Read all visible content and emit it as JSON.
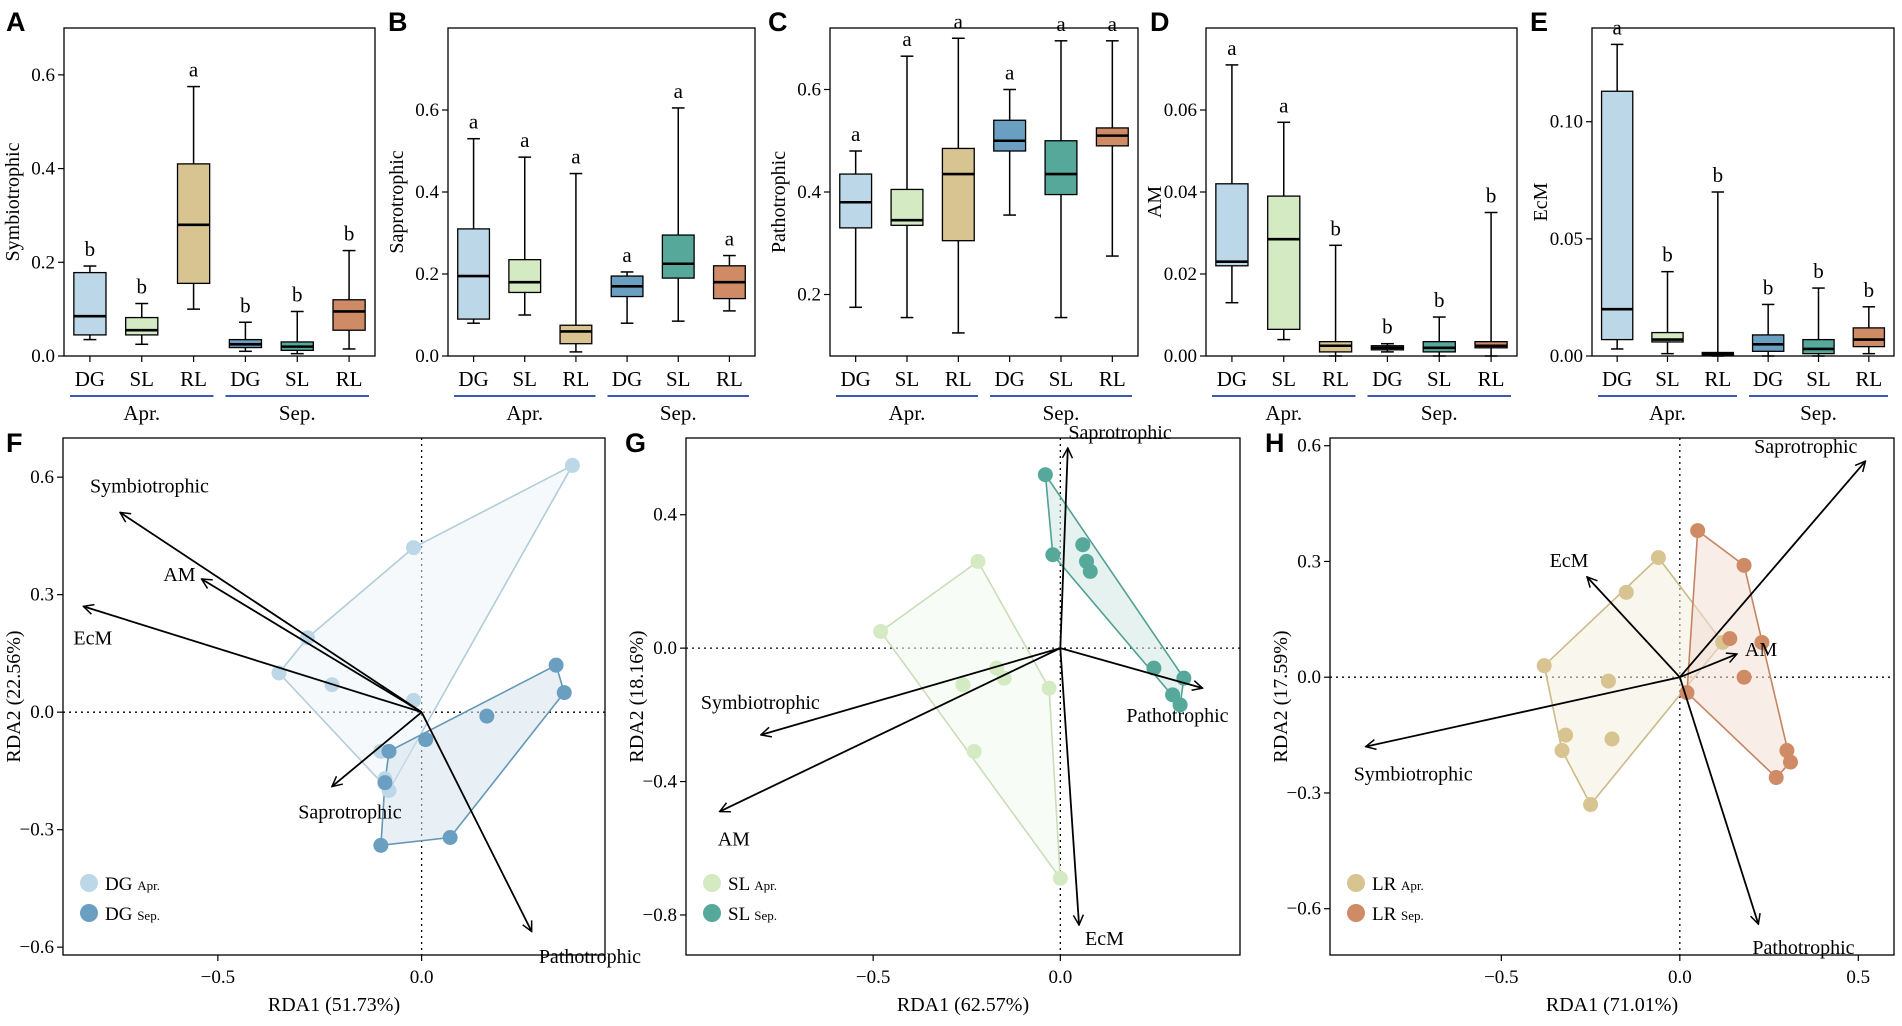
{
  "figure": {
    "panel_labels": [
      "A",
      "B",
      "C",
      "D",
      "E",
      "F",
      "G",
      "H"
    ]
  },
  "colors": {
    "DG_Apr": "#bcd7e7",
    "SL_Apr": "#d4eac2",
    "RL_Apr": "#d7c490",
    "DG_Sep": "#6a9fc1",
    "SL_Sep": "#56a89b",
    "RL_Sep": "#cf8b66",
    "group_line": "#3a5bb0"
  },
  "chart_data": [
    {
      "type": "boxplot",
      "panel": "A",
      "ylabel": "Symbiotrophic",
      "ylim": [
        0,
        0.7
      ],
      "yticks": [
        0,
        0.2,
        0.4,
        0.6
      ],
      "ytick_labels": [
        "0.0",
        "0.2",
        "0.4",
        "0.6"
      ],
      "categories": [
        "DG",
        "SL",
        "RL",
        "DG",
        "SL",
        "RL"
      ],
      "groups": [
        "Apr.",
        "Sep."
      ],
      "color_keys": [
        "DG_Apr",
        "SL_Apr",
        "RL_Apr",
        "DG_Sep",
        "SL_Sep",
        "RL_Sep"
      ],
      "boxes": [
        {
          "min": 0.035,
          "q1": 0.045,
          "median": 0.085,
          "q3": 0.178,
          "max": 0.192
        },
        {
          "min": 0.025,
          "q1": 0.045,
          "median": 0.055,
          "q3": 0.082,
          "max": 0.112
        },
        {
          "min": 0.1,
          "q1": 0.155,
          "median": 0.28,
          "q3": 0.41,
          "max": 0.575
        },
        {
          "min": 0.01,
          "q1": 0.018,
          "median": 0.025,
          "q3": 0.035,
          "max": 0.072
        },
        {
          "min": 0.005,
          "q1": 0.012,
          "median": 0.02,
          "q3": 0.03,
          "max": 0.095
        },
        {
          "min": 0.015,
          "q1": 0.055,
          "median": 0.095,
          "q3": 0.12,
          "max": 0.225
        }
      ],
      "letters": [
        "b",
        "b",
        "a",
        "b",
        "b",
        "b"
      ]
    },
    {
      "type": "boxplot",
      "panel": "B",
      "ylabel": "Saprotrophic",
      "ylim": [
        0,
        0.8
      ],
      "yticks": [
        0,
        0.2,
        0.4,
        0.6
      ],
      "ytick_labels": [
        "0.0",
        "0.2",
        "0.4",
        "0.6"
      ],
      "categories": [
        "DG",
        "SL",
        "RL",
        "DG",
        "SL",
        "RL"
      ],
      "groups": [
        "Apr.",
        "Sep."
      ],
      "color_keys": [
        "DG_Apr",
        "SL_Apr",
        "RL_Apr",
        "DG_Sep",
        "SL_Sep",
        "RL_Sep"
      ],
      "boxes": [
        {
          "min": 0.08,
          "q1": 0.09,
          "median": 0.195,
          "q3": 0.31,
          "max": 0.53
        },
        {
          "min": 0.1,
          "q1": 0.155,
          "median": 0.18,
          "q3": 0.235,
          "max": 0.485
        },
        {
          "min": 0.01,
          "q1": 0.03,
          "median": 0.06,
          "q3": 0.075,
          "max": 0.445
        },
        {
          "min": 0.08,
          "q1": 0.145,
          "median": 0.17,
          "q3": 0.195,
          "max": 0.205
        },
        {
          "min": 0.085,
          "q1": 0.19,
          "median": 0.225,
          "q3": 0.295,
          "max": 0.605
        },
        {
          "min": 0.11,
          "q1": 0.14,
          "median": 0.18,
          "q3": 0.22,
          "max": 0.245
        }
      ],
      "letters": [
        "a",
        "a",
        "a",
        "a",
        "a",
        "a"
      ]
    },
    {
      "type": "boxplot",
      "panel": "C",
      "ylabel": "Pathotrophic",
      "ylim": [
        0.08,
        0.72
      ],
      "yticks": [
        0.2,
        0.4,
        0.6
      ],
      "ytick_labels": [
        "0.2",
        "0.4",
        "0.6"
      ],
      "categories": [
        "DG",
        "SL",
        "RL",
        "DG",
        "SL",
        "RL"
      ],
      "groups": [
        "Apr.",
        "Sep."
      ],
      "color_keys": [
        "DG_Apr",
        "SL_Apr",
        "RL_Apr",
        "DG_Sep",
        "SL_Sep",
        "RL_Sep"
      ],
      "boxes": [
        {
          "min": 0.175,
          "q1": 0.33,
          "median": 0.38,
          "q3": 0.435,
          "max": 0.48
        },
        {
          "min": 0.155,
          "q1": 0.335,
          "median": 0.345,
          "q3": 0.405,
          "max": 0.665
        },
        {
          "min": 0.125,
          "q1": 0.305,
          "median": 0.435,
          "q3": 0.485,
          "max": 0.7
        },
        {
          "min": 0.355,
          "q1": 0.48,
          "median": 0.5,
          "q3": 0.54,
          "max": 0.6
        },
        {
          "min": 0.155,
          "q1": 0.395,
          "median": 0.435,
          "q3": 0.5,
          "max": 0.695
        },
        {
          "min": 0.275,
          "q1": 0.49,
          "median": 0.51,
          "q3": 0.525,
          "max": 0.695
        }
      ],
      "letters": [
        "a",
        "a",
        "a",
        "a",
        "a",
        "a"
      ]
    },
    {
      "type": "boxplot",
      "panel": "D",
      "ylabel": "AM",
      "ylim": [
        0,
        0.08
      ],
      "yticks": [
        0,
        0.02,
        0.04,
        0.06
      ],
      "ytick_labels": [
        "0.00",
        "0.02",
        "0.04",
        "0.06"
      ],
      "categories": [
        "DG",
        "SL",
        "RL",
        "DG",
        "SL",
        "RL"
      ],
      "groups": [
        "Apr.",
        "Sep."
      ],
      "color_keys": [
        "DG_Apr",
        "SL_Apr",
        "RL_Apr",
        "DG_Sep",
        "SL_Sep",
        "RL_Sep"
      ],
      "boxes": [
        {
          "min": 0.013,
          "q1": 0.022,
          "median": 0.023,
          "q3": 0.042,
          "max": 0.071
        },
        {
          "min": 0.004,
          "q1": 0.0065,
          "median": 0.0285,
          "q3": 0.039,
          "max": 0.057
        },
        {
          "min": 0.0,
          "q1": 0.001,
          "median": 0.0025,
          "q3": 0.0035,
          "max": 0.027
        },
        {
          "min": 0.001,
          "q1": 0.0015,
          "median": 0.002,
          "q3": 0.0025,
          "max": 0.003
        },
        {
          "min": 0.0,
          "q1": 0.001,
          "median": 0.002,
          "q3": 0.0035,
          "max": 0.0095
        },
        {
          "min": 0.0,
          "q1": 0.002,
          "median": 0.0025,
          "q3": 0.0035,
          "max": 0.035
        }
      ],
      "letters": [
        "a",
        "a",
        "b",
        "b",
        "b",
        "b"
      ]
    },
    {
      "type": "boxplot",
      "panel": "E",
      "ylabel": "EcM",
      "ylim": [
        0,
        0.14
      ],
      "yticks": [
        0,
        0.05,
        0.1
      ],
      "ytick_labels": [
        "0.00",
        "0.05",
        "0.10"
      ],
      "categories": [
        "DG",
        "SL",
        "RL",
        "DG",
        "SL",
        "RL"
      ],
      "groups": [
        "Apr.",
        "Sep."
      ],
      "color_keys": [
        "DG_Apr",
        "SL_Apr",
        "RL_Apr",
        "DG_Sep",
        "SL_Sep",
        "RL_Sep"
      ],
      "boxes": [
        {
          "min": 0.003,
          "q1": 0.007,
          "median": 0.02,
          "q3": 0.113,
          "max": 0.133
        },
        {
          "min": 0.001,
          "q1": 0.006,
          "median": 0.007,
          "q3": 0.01,
          "max": 0.036
        },
        {
          "min": 0.0,
          "q1": 0.0005,
          "median": 0.001,
          "q3": 0.0015,
          "max": 0.07
        },
        {
          "min": 0.0,
          "q1": 0.002,
          "median": 0.005,
          "q3": 0.009,
          "max": 0.022
        },
        {
          "min": 0.0,
          "q1": 0.001,
          "median": 0.003,
          "q3": 0.007,
          "max": 0.029
        },
        {
          "min": 0.001,
          "q1": 0.004,
          "median": 0.007,
          "q3": 0.012,
          "max": 0.021
        }
      ],
      "letters": [
        "a",
        "b",
        "b",
        "b",
        "b",
        "b"
      ]
    },
    {
      "type": "scatter",
      "subtype": "rda_biplot",
      "panel": "F",
      "xlabel": "RDA1 (51.73%)",
      "ylabel": "RDA2 (22.56%)",
      "xlim": [
        -0.88,
        0.45
      ],
      "ylim": [
        -0.62,
        0.7
      ],
      "xticks": [
        -0.5,
        0.0
      ],
      "xtick_labels": [
        "−0.5",
        "0.0"
      ],
      "yticks": [
        -0.6,
        -0.3,
        0.0,
        0.3,
        0.6
      ],
      "ytick_labels": [
        "−0.6",
        "−0.3",
        "0.0",
        "0.3",
        "0.6"
      ],
      "arrows": [
        {
          "label": "Symbiotrophic",
          "x": -0.74,
          "y": 0.51
        },
        {
          "label": "AM",
          "x": -0.54,
          "y": 0.34
        },
        {
          "label": "EcM",
          "x": -0.83,
          "y": 0.27
        },
        {
          "label": "Saprotrophic",
          "x": -0.22,
          "y": -0.19
        },
        {
          "label": "Pathotrophic",
          "x": 0.27,
          "y": -0.56
        }
      ],
      "groups": [
        {
          "name": "DG",
          "sub": "Apr.",
          "color_key": "DG_Apr",
          "points": [
            [
              0.37,
              0.63
            ],
            [
              -0.02,
              0.42
            ],
            [
              -0.28,
              0.19
            ],
            [
              -0.35,
              0.1
            ],
            [
              -0.22,
              0.07
            ],
            [
              -0.02,
              0.03
            ],
            [
              -0.1,
              -0.1
            ],
            [
              -0.08,
              -0.2
            ],
            [
              -0.09,
              -0.17
            ]
          ]
        },
        {
          "name": "DG",
          "sub": "Sep.",
          "color_key": "DG_Sep",
          "points": [
            [
              0.33,
              0.12
            ],
            [
              0.35,
              0.05
            ],
            [
              0.16,
              -0.01
            ],
            [
              0.01,
              -0.07
            ],
            [
              -0.08,
              -0.1
            ],
            [
              -0.09,
              -0.18
            ],
            [
              0.07,
              -0.32
            ],
            [
              -0.1,
              -0.34
            ]
          ]
        }
      ]
    },
    {
      "type": "scatter",
      "subtype": "rda_biplot",
      "panel": "G",
      "xlabel": "RDA1 (62.57%)",
      "ylabel": "RDA2 (18.16%)",
      "xlim": [
        -1.0,
        0.48
      ],
      "ylim": [
        -0.92,
        0.63
      ],
      "xticks": [
        -0.5,
        0.0
      ],
      "xtick_labels": [
        "−0.5",
        "0.0"
      ],
      "yticks": [
        -0.8,
        -0.4,
        0.0,
        0.4
      ],
      "ytick_labels": [
        "−0.8",
        "−0.4",
        "0.0",
        "0.4"
      ],
      "arrows": [
        {
          "label": "Saprotrophic",
          "x": 0.02,
          "y": 0.6
        },
        {
          "label": "Symbiotrophic",
          "x": -0.8,
          "y": -0.26
        },
        {
          "label": "AM",
          "x": -0.91,
          "y": -0.49
        },
        {
          "label": "Pathotrophic",
          "x": 0.38,
          "y": -0.12
        },
        {
          "label": "EcM",
          "x": 0.05,
          "y": -0.83
        }
      ],
      "groups": [
        {
          "name": "SL",
          "sub": "Apr.",
          "color_key": "SL_Apr",
          "points": [
            [
              -0.48,
              0.05
            ],
            [
              -0.22,
              0.26
            ],
            [
              -0.17,
              -0.06
            ],
            [
              -0.26,
              -0.11
            ],
            [
              -0.15,
              -0.09
            ],
            [
              -0.03,
              -0.12
            ],
            [
              -0.23,
              -0.31
            ],
            [
              0.0,
              -0.69
            ]
          ]
        },
        {
          "name": "SL",
          "sub": "Sep.",
          "color_key": "SL_Sep",
          "points": [
            [
              -0.04,
              0.52
            ],
            [
              -0.02,
              0.28
            ],
            [
              0.06,
              0.31
            ],
            [
              0.07,
              0.26
            ],
            [
              0.08,
              0.23
            ],
            [
              0.25,
              -0.06
            ],
            [
              0.33,
              -0.09
            ],
            [
              0.3,
              -0.14
            ],
            [
              0.32,
              -0.17
            ]
          ]
        }
      ]
    },
    {
      "type": "scatter",
      "subtype": "rda_biplot",
      "panel": "H",
      "xlabel": "RDA1 (71.01%)",
      "ylabel": "RDA2 (17.59%)",
      "xlim": [
        -0.98,
        0.6
      ],
      "ylim": [
        -0.72,
        0.62
      ],
      "xticks": [
        -0.5,
        0.0,
        0.5
      ],
      "xtick_labels": [
        "−0.5",
        "0.0",
        "0.5"
      ],
      "yticks": [
        -0.6,
        -0.3,
        0.0,
        0.3,
        0.6
      ],
      "ytick_labels": [
        "−0.6",
        "−0.3",
        "0.0",
        "0.3",
        "0.6"
      ],
      "arrows": [
        {
          "label": "Saprotrophic",
          "x": 0.52,
          "y": 0.56
        },
        {
          "label": "EcM",
          "x": -0.26,
          "y": 0.26
        },
        {
          "label": "AM",
          "x": 0.16,
          "y": 0.06
        },
        {
          "label": "Symbiotrophic",
          "x": -0.88,
          "y": -0.18
        },
        {
          "label": "Pathotrophic",
          "x": 0.22,
          "y": -0.64
        }
      ],
      "groups": [
        {
          "name": "LR",
          "sub": "Apr.",
          "color_key": "RL_Apr",
          "points": [
            [
              -0.06,
              0.31
            ],
            [
              -0.15,
              0.22
            ],
            [
              -0.38,
              0.03
            ],
            [
              -0.2,
              -0.01
            ],
            [
              -0.32,
              -0.15
            ],
            [
              -0.33,
              -0.19
            ],
            [
              -0.19,
              -0.16
            ],
            [
              -0.25,
              -0.33
            ],
            [
              0.12,
              0.09
            ]
          ]
        },
        {
          "name": "LR",
          "sub": "Sep.",
          "color_key": "RL_Sep",
          "points": [
            [
              0.05,
              0.38
            ],
            [
              0.18,
              0.29
            ],
            [
              0.14,
              0.1
            ],
            [
              0.23,
              0.09
            ],
            [
              0.18,
              0.0
            ],
            [
              0.02,
              -0.04
            ],
            [
              0.3,
              -0.19
            ],
            [
              0.31,
              -0.22
            ],
            [
              0.27,
              -0.26
            ]
          ]
        }
      ]
    }
  ]
}
